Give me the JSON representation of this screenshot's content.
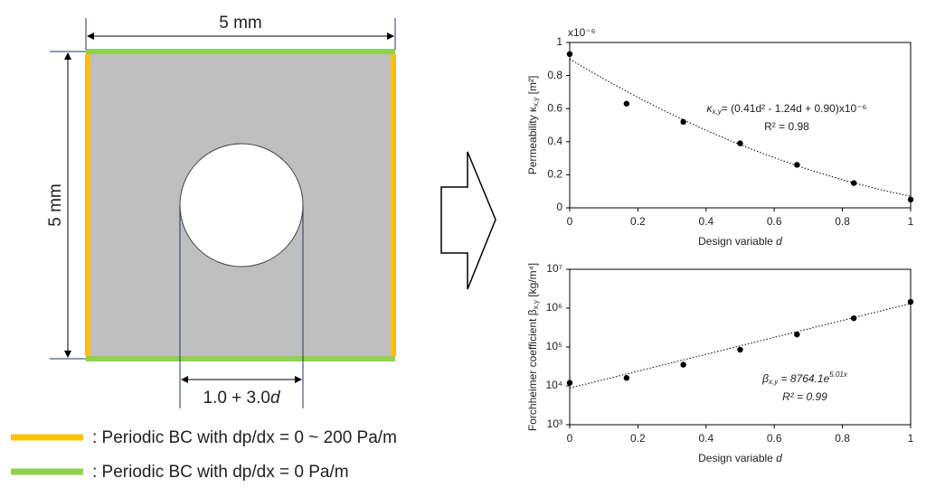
{
  "diagram": {
    "top_dim": "5 mm",
    "left_dim": "5 mm",
    "hole_dim": {
      "text": "1.0 + 3.0",
      "var": "d"
    },
    "square_color": "#bfbfbf",
    "legend": [
      {
        "color": "#ffc000",
        "label": ": Periodic BC with dp/dx = 0 ~ 200 Pa/m"
      },
      {
        "color": "#92d050",
        "label": ": Periodic BC with dp/dx = 0 Pa/m"
      }
    ]
  },
  "chart_data": [
    {
      "type": "scatter",
      "multiplier": "x10⁻⁶",
      "ylabel": {
        "text": "Permeability κ",
        "sub": "x,y",
        "tail": " [m²]"
      },
      "xlabel": {
        "text": "Design variable ",
        "var": "d"
      },
      "x": [
        0,
        0.1667,
        0.3333,
        0.5,
        0.6667,
        0.8333,
        1
      ],
      "values": [
        0.93,
        0.63,
        0.52,
        0.39,
        0.26,
        0.15,
        0.05
      ],
      "color": "#000000",
      "xlim": [
        0,
        1
      ],
      "xticks": [
        0,
        0.2,
        0.4,
        0.6,
        0.8,
        1
      ],
      "ylim": [
        0,
        1
      ],
      "yticks": [
        0,
        0.2,
        0.4,
        0.6,
        0.8,
        1
      ],
      "trendline": {
        "kind": "polynomial",
        "coefficients": [
          0.9,
          -1.24,
          0.41
        ]
      },
      "annotation": {
        "lhs": "κ",
        "sub": "x,y",
        "text": "= (0.41d² - 1.24d + 0.90)x10⁻⁶",
        "r2": "R² = 0.98"
      }
    },
    {
      "type": "scatter",
      "log_y": true,
      "ylabel": {
        "text": "Forchheimer coefficient β",
        "sub": "x,y",
        "tail": " [kg/m⁴]"
      },
      "xlabel": {
        "text": "Design variable ",
        "var": "d"
      },
      "x": [
        0,
        0.1667,
        0.3333,
        0.5,
        0.6667,
        0.8333,
        1
      ],
      "values": [
        12000,
        16000,
        35000,
        85000,
        210000,
        550000,
        1450000
      ],
      "color": "#000000",
      "xlim": [
        0,
        1
      ],
      "xticks": [
        0,
        0.2,
        0.4,
        0.6,
        0.8,
        1
      ],
      "ylim": [
        1000,
        10000000
      ],
      "yticks": [
        {
          "value": 1000,
          "label": "10³"
        },
        {
          "value": 10000,
          "label": "10⁴"
        },
        {
          "value": 100000,
          "label": "10⁵"
        },
        {
          "value": 1000000,
          "label": "10⁶"
        },
        {
          "value": 10000000,
          "label": "10⁷"
        }
      ],
      "trendline": {
        "kind": "exponential",
        "a": 8764.1,
        "b": 5.01
      },
      "annotation": {
        "lhs": "β",
        "sub": "x,y",
        "text": " = 8764.1e",
        "sup": "5.01x",
        "r2": "R² = 0.99"
      }
    }
  ]
}
